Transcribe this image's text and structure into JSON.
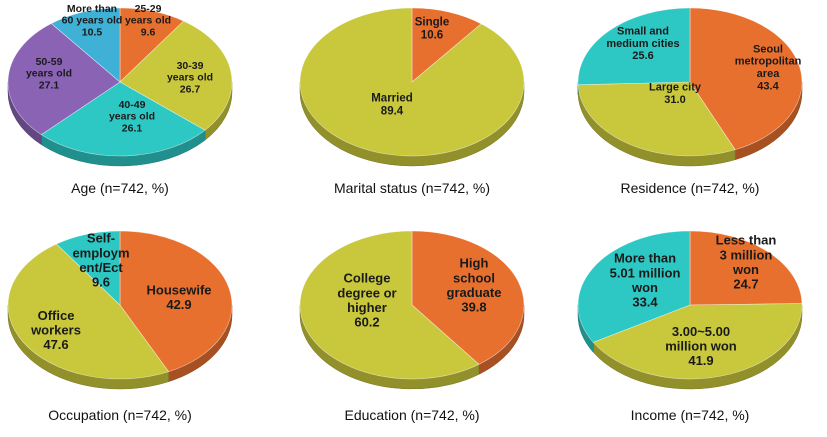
{
  "chart_data": [
    {
      "type": "pie",
      "title": "Age  (n=742,  %)",
      "slices": [
        {
          "label": [
            "25-29",
            "years old",
            "9.6"
          ],
          "value": 9.6,
          "color": "#e8702f"
        },
        {
          "label": [
            "30-39",
            "years old",
            "26.7"
          ],
          "value": 26.7,
          "color": "#c9c83c"
        },
        {
          "label": [
            "40-49",
            "years old",
            "26.1"
          ],
          "value": 26.1,
          "color": "#2ec8c4"
        },
        {
          "label": [
            "50-59",
            "years old",
            "27.1"
          ],
          "value": 27.1,
          "color": "#8a63b5"
        },
        {
          "label": [
            "More than",
            "60 years old",
            "10.5"
          ],
          "value": 10.5,
          "color": "#3fb0d6"
        }
      ]
    },
    {
      "type": "pie",
      "title": "Marital  status  (n=742,  %)",
      "slices": [
        {
          "label": [
            "Single",
            "10.6"
          ],
          "value": 10.6,
          "color": "#e8702f"
        },
        {
          "label": [
            "Married",
            "89.4"
          ],
          "value": 89.4,
          "color": "#c9c83c"
        }
      ]
    },
    {
      "type": "pie",
      "title": "Residence  (n=742,  %)",
      "slices": [
        {
          "label": [
            "Seoul",
            "metropolitan",
            "area",
            "43.4"
          ],
          "value": 43.4,
          "color": "#e8702f"
        },
        {
          "label": [
            "Large city",
            "31.0"
          ],
          "value": 31.0,
          "color": "#c9c83c"
        },
        {
          "label": [
            "Small and",
            "medium cities",
            "25.6"
          ],
          "value": 25.6,
          "color": "#2ec8c4"
        }
      ]
    },
    {
      "type": "pie",
      "title": "Occupation  (n=742,  %)",
      "slices": [
        {
          "label": [
            "Housewife",
            "42.9"
          ],
          "value": 42.9,
          "color": "#e8702f"
        },
        {
          "label": [
            "Office",
            "workers",
            "47.6"
          ],
          "value": 47.6,
          "color": "#c9c83c"
        },
        {
          "label": [
            "Self-",
            "employm",
            "ent/Ect",
            "9.6"
          ],
          "value": 9.6,
          "color": "#2ec8c4"
        }
      ]
    },
    {
      "type": "pie",
      "title": "Education  (n=742,  %)",
      "slices": [
        {
          "label": [
            "High",
            "school",
            "graduate",
            "39.8"
          ],
          "value": 39.8,
          "color": "#e8702f"
        },
        {
          "label": [
            "College",
            "degree or",
            "higher",
            "60.2"
          ],
          "value": 60.2,
          "color": "#c9c83c"
        }
      ]
    },
    {
      "type": "pie",
      "title": "Income  (n=742,  %)",
      "slices": [
        {
          "label": [
            "Less than",
            "3 million",
            "won",
            "24.7"
          ],
          "value": 24.7,
          "color": "#e8702f"
        },
        {
          "label": [
            "3.00~5.00",
            "million won",
            "41.9"
          ],
          "value": 41.9,
          "color": "#c9c83c"
        },
        {
          "label": [
            "More than",
            "5.01 million",
            "won",
            "33.4"
          ],
          "value": 33.4,
          "color": "#2ec8c4"
        }
      ]
    }
  ]
}
